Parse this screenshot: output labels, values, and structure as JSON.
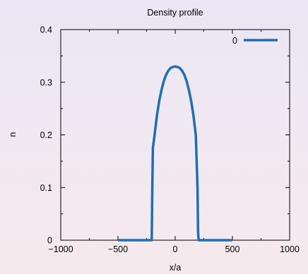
{
  "chart_data": {
    "type": "line",
    "title": "Density profile",
    "xlabel": "x/a",
    "ylabel": "n",
    "xlim": [
      -1000,
      1000
    ],
    "ylim": [
      0,
      0.4
    ],
    "xticks": [
      -1000,
      -500,
      0,
      500,
      1000
    ],
    "xtick_labels": [
      "−1000",
      "−500",
      "0",
      "500",
      "1000"
    ],
    "yticks": [
      0,
      0.1,
      0.2,
      0.3,
      0.4
    ],
    "ytick_labels": [
      "0",
      "0.1",
      "0.2",
      "0.3",
      "0.4"
    ],
    "grid": false,
    "legend_position": "top-right",
    "series": [
      {
        "name": "0",
        "color": "#1f6fb0",
        "x": [
          -500,
          -205,
          -200,
          -195,
          -180,
          -160,
          -140,
          -120,
          -100,
          -80,
          -60,
          -40,
          -20,
          0,
          20,
          40,
          60,
          80,
          100,
          120,
          140,
          160,
          180,
          195,
          200,
          205,
          500
        ],
        "y": [
          0,
          0,
          0.1,
          0.175,
          0.2,
          0.236,
          0.264,
          0.285,
          0.302,
          0.314,
          0.322,
          0.327,
          0.329,
          0.33,
          0.329,
          0.327,
          0.322,
          0.314,
          0.302,
          0.285,
          0.264,
          0.236,
          0.2,
          0.1,
          0.015,
          0,
          0
        ]
      }
    ]
  }
}
